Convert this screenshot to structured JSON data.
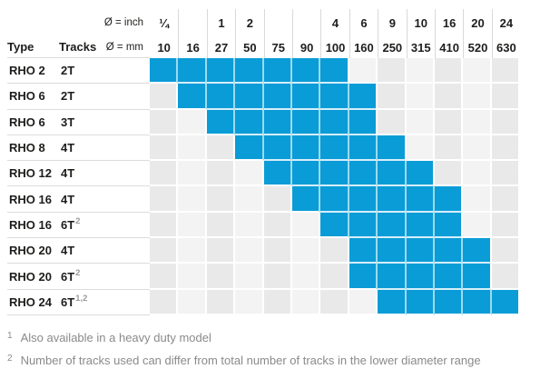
{
  "table": {
    "header": {
      "type_label": "Type",
      "tracks_label": "Tracks",
      "inch_label": "Ø = inch",
      "mm_label": "Ø = mm",
      "inch_values": [
        "¼",
        "",
        "1",
        "2",
        "",
        "",
        "4",
        "6",
        "9",
        "10",
        "16",
        "20",
        "24"
      ],
      "mm_values": [
        "10",
        "16",
        "27",
        "50",
        "75",
        "90",
        "100",
        "160",
        "250",
        "315",
        "410",
        "520",
        "630"
      ]
    },
    "rows": [
      {
        "type": "RHO 2",
        "tracks": "2T",
        "sup": "",
        "start": 0,
        "end": 6
      },
      {
        "type": "RHO 6",
        "tracks": "2T",
        "sup": "",
        "start": 1,
        "end": 7
      },
      {
        "type": "RHO 6",
        "tracks": "3T",
        "sup": "",
        "start": 2,
        "end": 7
      },
      {
        "type": "RHO 8",
        "tracks": "4T",
        "sup": "",
        "start": 3,
        "end": 8
      },
      {
        "type": "RHO 12",
        "tracks": "4T",
        "sup": "",
        "start": 4,
        "end": 9
      },
      {
        "type": "RHO 16",
        "tracks": "4T",
        "sup": "",
        "start": 5,
        "end": 10
      },
      {
        "type": "RHO 16",
        "tracks": "6T",
        "sup": "2",
        "start": 6,
        "end": 10
      },
      {
        "type": "RHO 20",
        "tracks": "4T",
        "sup": "",
        "start": 7,
        "end": 11
      },
      {
        "type": "RHO 20",
        "tracks": "6T",
        "sup": "2",
        "start": 7,
        "end": 11
      },
      {
        "type": "RHO 24",
        "tracks": "6T",
        "sup": "1,2",
        "start": 8,
        "end": 12
      }
    ]
  },
  "footnotes": [
    {
      "marker": "1",
      "text": "Also available in a heavy duty model"
    },
    {
      "marker": "2",
      "text": "Number of tracks used can differ from total number of tracks in the lower diameter range"
    }
  ],
  "colors": {
    "range_blue": "#0a9cd7",
    "cell_gray_dark": "#e9e9e9",
    "cell_gray_light": "#f3f3f3",
    "divider_blue_vertical": "#9ddaef",
    "divider_blue_horizontal": "#d6eef9",
    "footnote_gray": "#8a8a8a"
  },
  "chart_data": {
    "type": "table",
    "description": "Diameter range matrix: blue cells mark the supported diameter range per model",
    "columns_mm": [
      10,
      16,
      27,
      50,
      75,
      90,
      100,
      160,
      250,
      315,
      410,
      520,
      630
    ],
    "columns_inch": [
      "¼",
      "",
      "1",
      "2",
      "",
      "",
      "4",
      "6",
      "9",
      "10",
      "16",
      "20",
      "24"
    ],
    "rows": [
      {
        "type": "RHO 2",
        "tracks": "2T",
        "range_mm": [
          10,
          100
        ]
      },
      {
        "type": "RHO 6",
        "tracks": "2T",
        "range_mm": [
          16,
          160
        ]
      },
      {
        "type": "RHO 6",
        "tracks": "3T",
        "range_mm": [
          27,
          160
        ]
      },
      {
        "type": "RHO 8",
        "tracks": "4T",
        "range_mm": [
          50,
          250
        ]
      },
      {
        "type": "RHO 12",
        "tracks": "4T",
        "range_mm": [
          75,
          315
        ]
      },
      {
        "type": "RHO 16",
        "tracks": "4T",
        "range_mm": [
          90,
          410
        ]
      },
      {
        "type": "RHO 16",
        "tracks": "6T2",
        "range_mm": [
          100,
          410
        ]
      },
      {
        "type": "RHO 20",
        "tracks": "4T",
        "range_mm": [
          160,
          520
        ]
      },
      {
        "type": "RHO 20",
        "tracks": "6T2",
        "range_mm": [
          160,
          520
        ]
      },
      {
        "type": "RHO 24",
        "tracks": "6T12",
        "range_mm": [
          250,
          630
        ]
      }
    ],
    "legend_position": "none",
    "grid": true
  }
}
